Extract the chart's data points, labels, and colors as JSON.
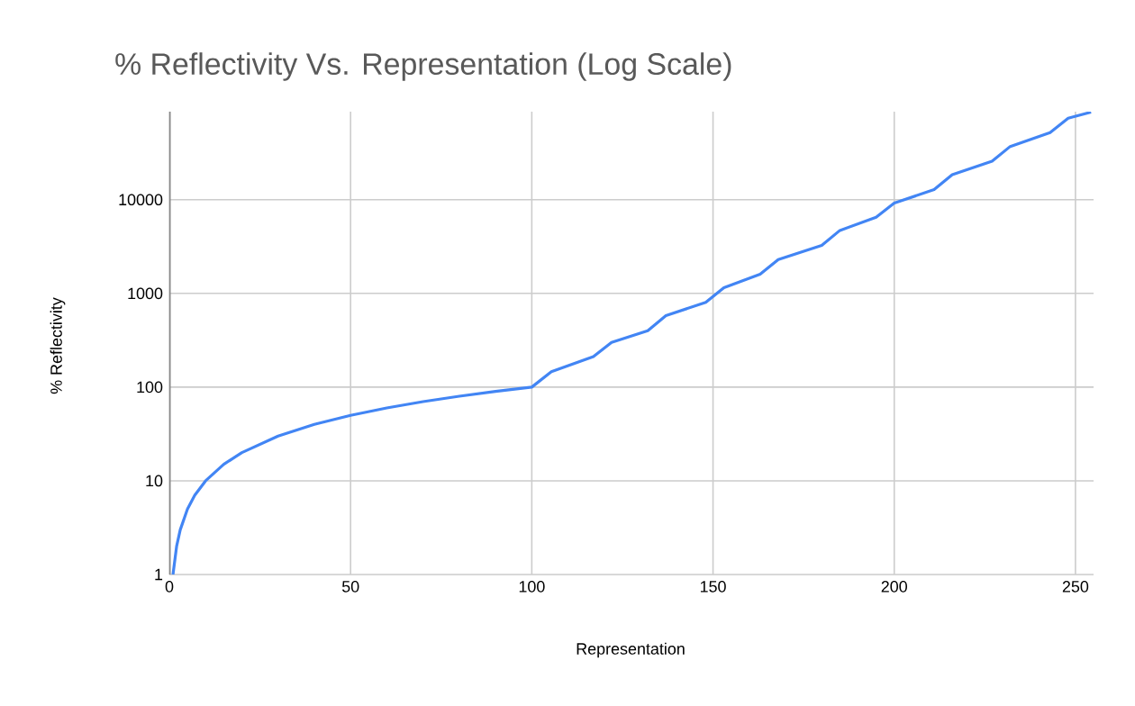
{
  "chart_data": {
    "type": "line",
    "title": "% Reflectivity Vs. Representation (Log Scale)",
    "xlabel": "Representation",
    "ylabel": "% Reflectivity",
    "x": [
      1,
      2,
      3,
      5,
      7,
      10,
      15,
      20,
      30,
      40,
      50,
      60,
      70,
      80,
      90,
      100,
      105.4,
      117,
      122,
      132,
      137,
      148,
      153,
      163,
      168,
      180,
      185,
      195,
      200,
      211,
      216,
      227,
      232,
      243,
      248,
      254.3
    ],
    "series": [
      {
        "color": "#4285f4",
        "values": [
          1,
          2,
          3,
          5,
          7,
          10,
          15,
          20,
          30,
          40,
          50,
          60,
          70,
          80,
          90,
          100,
          146,
          212,
          300,
          400,
          580,
          801,
          1150,
          1600,
          2300,
          3250,
          4700,
          6500,
          9200,
          12800,
          18500,
          25700,
          37000,
          52100,
          74000,
          86000
        ]
      }
    ],
    "log": "y",
    "xlim": [
      0,
      255
    ],
    "ylim": [
      1,
      87000
    ],
    "xticks": [
      0,
      50,
      100,
      150,
      200,
      250
    ],
    "yticks": [
      1,
      10,
      100,
      1000,
      10000
    ],
    "grid": true,
    "marker": "none",
    "line_style": "solid"
  }
}
